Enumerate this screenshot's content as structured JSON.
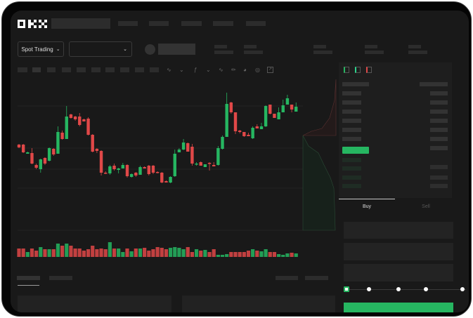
{
  "header": {
    "logo": "OKX"
  },
  "market_bar": {
    "mode_button": "Spot Trading"
  },
  "toolbar": {
    "icons": [
      "line-tool-icon",
      "chevron-icon",
      "indicator-icon",
      "chevron-icon",
      "wave-icon",
      "ruler-icon",
      "gauge-icon",
      "target-icon",
      "fullscreen-icon"
    ]
  },
  "order_book": {
    "view_icons": [
      "both-sides-icon",
      "bids-only-icon",
      "asks-only-icon"
    ]
  },
  "trade_panel": {
    "tabs": [
      {
        "label": "Buy",
        "active": true
      },
      {
        "label": "Sell",
        "active": false
      }
    ],
    "slider_percent": 0
  },
  "colors": {
    "up": "#26b661",
    "down": "#e04848",
    "background": "#191919"
  },
  "chart_data": {
    "type": "candlestick",
    "columns": [
      "open",
      "close",
      "high",
      "low"
    ],
    "candles": [
      [
        97,
        93,
        98,
        92
      ],
      [
        97,
        86,
        98,
        85
      ],
      [
        84,
        86,
        87,
        84
      ],
      [
        85,
        70,
        92,
        69
      ],
      [
        68,
        64,
        70,
        62
      ],
      [
        62,
        76,
        77,
        57
      ],
      [
        78,
        70,
        79,
        68
      ],
      [
        74,
        92,
        93,
        73
      ],
      [
        91,
        83,
        92,
        81
      ],
      [
        84,
        115,
        123,
        84
      ],
      [
        114,
        105,
        117,
        104
      ],
      [
        105,
        137,
        152,
        105
      ],
      [
        140,
        135,
        141,
        134
      ],
      [
        137,
        133,
        138,
        131
      ],
      [
        137,
        125,
        142,
        123
      ],
      [
        133,
        130,
        134,
        130
      ],
      [
        134,
        111,
        136,
        110
      ],
      [
        111,
        87,
        112,
        86
      ],
      [
        91,
        88,
        92,
        85
      ],
      [
        88,
        57,
        89,
        53
      ],
      [
        57,
        56,
        59,
        55
      ],
      [
        56,
        66,
        68,
        54
      ],
      [
        67,
        62,
        70,
        60
      ],
      [
        61,
        63,
        64,
        56
      ],
      [
        63,
        68,
        71,
        63
      ],
      [
        68,
        52,
        69,
        50
      ],
      [
        51,
        55,
        56,
        50
      ],
      [
        57,
        53,
        58,
        51
      ],
      [
        54,
        65,
        67,
        54
      ],
      [
        65,
        63,
        66,
        63
      ],
      [
        67,
        55,
        68,
        53
      ],
      [
        67,
        57,
        68,
        55
      ],
      [
        58,
        57,
        59,
        56
      ],
      [
        57,
        43,
        58,
        42
      ],
      [
        45,
        43,
        46,
        43
      ],
      [
        43,
        51,
        52,
        42
      ],
      [
        52,
        84,
        90,
        51
      ],
      [
        86,
        90,
        92,
        86
      ],
      [
        90,
        100,
        105,
        89
      ],
      [
        99,
        87,
        100,
        87
      ],
      [
        94,
        70,
        98,
        67
      ],
      [
        69,
        70,
        72,
        67
      ],
      [
        72,
        67,
        73,
        67
      ],
      [
        65,
        69,
        69,
        65
      ],
      [
        71,
        70,
        72,
        60
      ],
      [
        68,
        66,
        72,
        66
      ],
      [
        68,
        92,
        95,
        67
      ],
      [
        91,
        108,
        110,
        90
      ],
      [
        108,
        155,
        171,
        108
      ],
      [
        157,
        143,
        158,
        141
      ],
      [
        143,
        116,
        143,
        112
      ],
      [
        117,
        115,
        118,
        113
      ],
      [
        115,
        109,
        115,
        108
      ],
      [
        111,
        109,
        114,
        109
      ],
      [
        106,
        121,
        123,
        105
      ],
      [
        123,
        120,
        126,
        120
      ],
      [
        119,
        123,
        128,
        119
      ],
      [
        123,
        152,
        153,
        122
      ],
      [
        154,
        141,
        154,
        140
      ],
      [
        141,
        135,
        141,
        135
      ],
      [
        133,
        143,
        150,
        133
      ],
      [
        143,
        153,
        161,
        143
      ],
      [
        154,
        163,
        168,
        154
      ],
      [
        154,
        147,
        154,
        143
      ],
      [
        144,
        151,
        157,
        144
      ]
    ],
    "volume": [
      12,
      12,
      7,
      12,
      9,
      14,
      11,
      11,
      11,
      19,
      16,
      19,
      16,
      12,
      12,
      9,
      11,
      16,
      11,
      12,
      11,
      21,
      12,
      12,
      7,
      12,
      8,
      12,
      12,
      13,
      9,
      11,
      14,
      13,
      11,
      13,
      14,
      13,
      11,
      14,
      7,
      11,
      9,
      10,
      7,
      11,
      3,
      3,
      4,
      7,
      7,
      7,
      7,
      9,
      11,
      9,
      8,
      11,
      7,
      7,
      4,
      3,
      5,
      6,
      5
    ]
  }
}
